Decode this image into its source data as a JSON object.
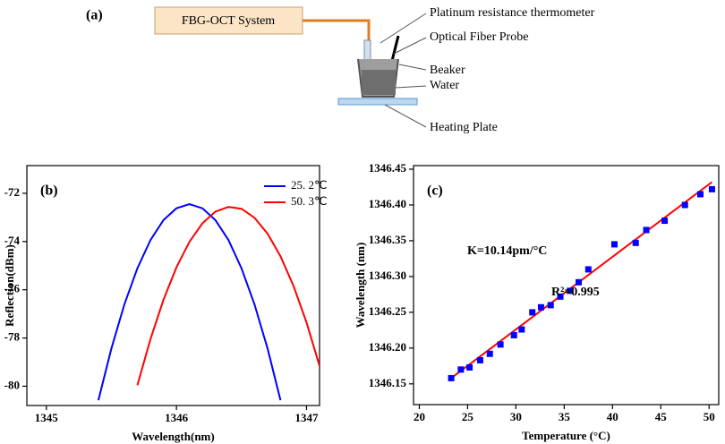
{
  "diagram": {
    "label": "(a)",
    "system": "FBG-OCT System",
    "labels": [
      "Platinum resistance thermometer",
      "Optical Fiber Probe",
      "Beaker",
      "Water",
      "Heating Plate"
    ]
  },
  "chart_data": [
    {
      "type": "line",
      "label": "(b)",
      "x_label": "Wavelength(nm)",
      "y_label": "Reflection(dBm)",
      "x": [
        1345.4,
        1345.5,
        1345.6,
        1345.7,
        1345.8,
        1345.9,
        1346.0,
        1346.1,
        1346.2,
        1346.3,
        1346.4,
        1346.5,
        1346.6,
        1346.7,
        1346.8,
        1346.9,
        1347.0,
        1347.1
      ],
      "series": [
        {
          "name": "25. 2℃",
          "color": "#0000ff",
          "values": [
            -80.58,
            -78.43,
            -76.6,
            -75.11,
            -73.94,
            -73.11,
            -72.62,
            -72.45,
            -72.62,
            -73.11,
            -73.94,
            -75.11,
            -76.6,
            -78.43,
            -80.58,
            null,
            null,
            null
          ]
        },
        {
          "name": "50. 3℃",
          "color": "#ff0000",
          "values": [
            null,
            null,
            null,
            -79.96,
            -78.05,
            -76.42,
            -75.07,
            -74.01,
            -73.24,
            -72.76,
            -72.56,
            -72.64,
            -73.01,
            -73.67,
            -74.61,
            -75.84,
            -77.36,
            -79.16
          ]
        }
      ],
      "xlim": [
        1344.85,
        1347.1
      ],
      "xticks": [
        1345,
        1346,
        1347
      ],
      "ylim": [
        -80.8,
        -70.85
      ],
      "yticks": [
        -80,
        -78,
        -76,
        -74,
        -72
      ],
      "legend": "upper right"
    },
    {
      "type": "scatter",
      "label": "(c)",
      "x_label": "Temperature (°C)",
      "y_label": "Wavelength (nm)",
      "x": [
        23.3,
        24.3,
        25.2,
        26.3,
        27.3,
        28.4,
        29.8,
        30.6,
        31.7,
        32.6,
        33.6,
        34.6,
        35.6,
        36.5,
        37.5,
        40.2,
        42.4,
        43.5,
        45.4,
        47.5,
        49.1,
        50.3
      ],
      "series": [
        {
          "color": "#0000ff",
          "values": [
            1346.158,
            1346.17,
            1346.173,
            1346.183,
            1346.192,
            1346.205,
            1346.218,
            1346.226,
            1346.25,
            1346.257,
            1346.26,
            1346.272,
            1346.28,
            1346.292,
            1346.31,
            1346.345,
            1346.347,
            1346.365,
            1346.378,
            1346.4,
            1346.415,
            1346.422
          ]
        }
      ],
      "fit": {
        "color": "#ff0000",
        "x": [
          23.3,
          50.3
        ],
        "values": [
          1346.158,
          1346.432
        ]
      },
      "annotations": [
        "K=10.14pm/°C",
        "R²=0.995"
      ],
      "xlim": [
        19.4,
        51
      ],
      "xticks": [
        20,
        25,
        30,
        35,
        40,
        45,
        50
      ],
      "ylim": [
        1346.121,
        1346.455
      ],
      "yticks": [
        1346.15,
        {
          "value": 1346.2,
          "label": "1346.20"
        },
        1346.25,
        {
          "value": 1346.3,
          "label": "1346.30"
        },
        1346.35,
        {
          "value": 1346.4,
          "label": "1346.40"
        },
        1346.45
      ]
    }
  ]
}
